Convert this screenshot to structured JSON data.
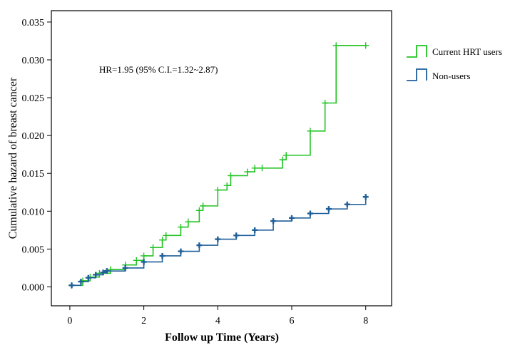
{
  "chart_data": {
    "type": "line",
    "xlabel": "Follow up Time (Years)",
    "ylabel": "Cumulative hazard of breast cancer",
    "xlim": [
      -0.5,
      8.7
    ],
    "ylim": [
      -0.0025,
      0.0365
    ],
    "x_ticks": [
      0,
      2,
      4,
      6,
      8
    ],
    "x_tick_labels": [
      "0",
      "2",
      "4",
      "6",
      "8"
    ],
    "y_ticks": [
      0.0,
      0.005,
      0.01,
      0.015,
      0.02,
      0.025,
      0.03,
      0.035
    ],
    "y_tick_labels": [
      "0.000",
      "0.005",
      "0.010",
      "0.015",
      "0.020",
      "0.025",
      "0.030",
      "0.035"
    ],
    "annotation": "HR=1.95 (95% C.I.=1.32~2.87)",
    "legend_position": "right",
    "grid": false,
    "series": [
      {
        "name": "Current HRT users",
        "color": "#22c322",
        "step": true,
        "x": [
          0.05,
          0.35,
          0.55,
          0.8,
          1.1,
          1.5,
          1.8,
          2.0,
          2.25,
          2.5,
          2.6,
          3.0,
          3.2,
          3.5,
          3.6,
          4.0,
          4.25,
          4.35,
          4.8,
          5.0,
          5.2,
          5.75,
          5.85,
          6.5,
          6.9,
          7.2,
          8.0
        ],
        "y": [
          0.0002,
          0.0008,
          0.0013,
          0.0018,
          0.0023,
          0.0029,
          0.0035,
          0.0041,
          0.0052,
          0.0062,
          0.0068,
          0.0079,
          0.0086,
          0.0101,
          0.0107,
          0.0128,
          0.0134,
          0.0147,
          0.0152,
          0.0157,
          0.0157,
          0.0168,
          0.0174,
          0.0206,
          0.0243,
          0.0319,
          0.0319
        ]
      },
      {
        "name": "Non-users",
        "color": "#1f5f99",
        "step": true,
        "x": [
          0.05,
          0.3,
          0.5,
          0.7,
          0.9,
          1.0,
          1.5,
          2.0,
          2.5,
          3.0,
          3.5,
          4.0,
          4.5,
          5.0,
          5.5,
          6.0,
          6.5,
          7.0,
          7.5,
          8.0
        ],
        "y": [
          0.0002,
          0.0007,
          0.0012,
          0.0016,
          0.0019,
          0.0021,
          0.0025,
          0.0033,
          0.0041,
          0.0047,
          0.0055,
          0.0063,
          0.0068,
          0.0075,
          0.0087,
          0.0091,
          0.0097,
          0.0103,
          0.0109,
          0.0119
        ]
      }
    ]
  }
}
